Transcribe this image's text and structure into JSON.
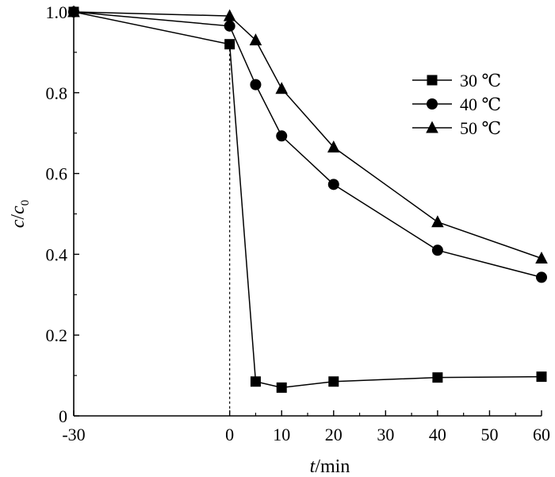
{
  "chart_data": {
    "type": "line",
    "x_ticks": [
      "-30",
      "0",
      "10",
      "20",
      "30",
      "40",
      "50",
      "60"
    ],
    "y_ticks": [
      "0",
      "0.2",
      "0.4",
      "0.6",
      "0.8",
      "1.0"
    ],
    "x_tick_values": [
      -30,
      0,
      10,
      20,
      30,
      40,
      50,
      60
    ],
    "y_tick_values": [
      0,
      0.2,
      0.4,
      0.6,
      0.8,
      1.0
    ],
    "xlim": [
      -30,
      60
    ],
    "ylim": [
      0,
      1.0
    ],
    "xlabel": {
      "italic": "t",
      "rest": "/min"
    },
    "ylabel": {
      "c": "c",
      "slash": "/",
      "c0": "c",
      "sub": "0"
    },
    "legend_position": "top-right",
    "reference_line_x": 0,
    "series": [
      {
        "name": "30 ℃",
        "marker": "square",
        "x": [
          -30,
          0,
          5,
          10,
          20,
          40,
          60
        ],
        "y": [
          1.0,
          0.92,
          0.085,
          0.07,
          0.085,
          0.095,
          0.097
        ]
      },
      {
        "name": "40 ℃",
        "marker": "circle",
        "x": [
          -30,
          0,
          5,
          10,
          20,
          40,
          60
        ],
        "y": [
          1.0,
          0.965,
          0.82,
          0.693,
          0.573,
          0.41,
          0.343
        ]
      },
      {
        "name": "50 ℃",
        "marker": "triangle",
        "x": [
          -30,
          0,
          5,
          10,
          20,
          40,
          60
        ],
        "y": [
          1.0,
          0.99,
          0.93,
          0.81,
          0.665,
          0.48,
          0.39
        ]
      }
    ]
  }
}
